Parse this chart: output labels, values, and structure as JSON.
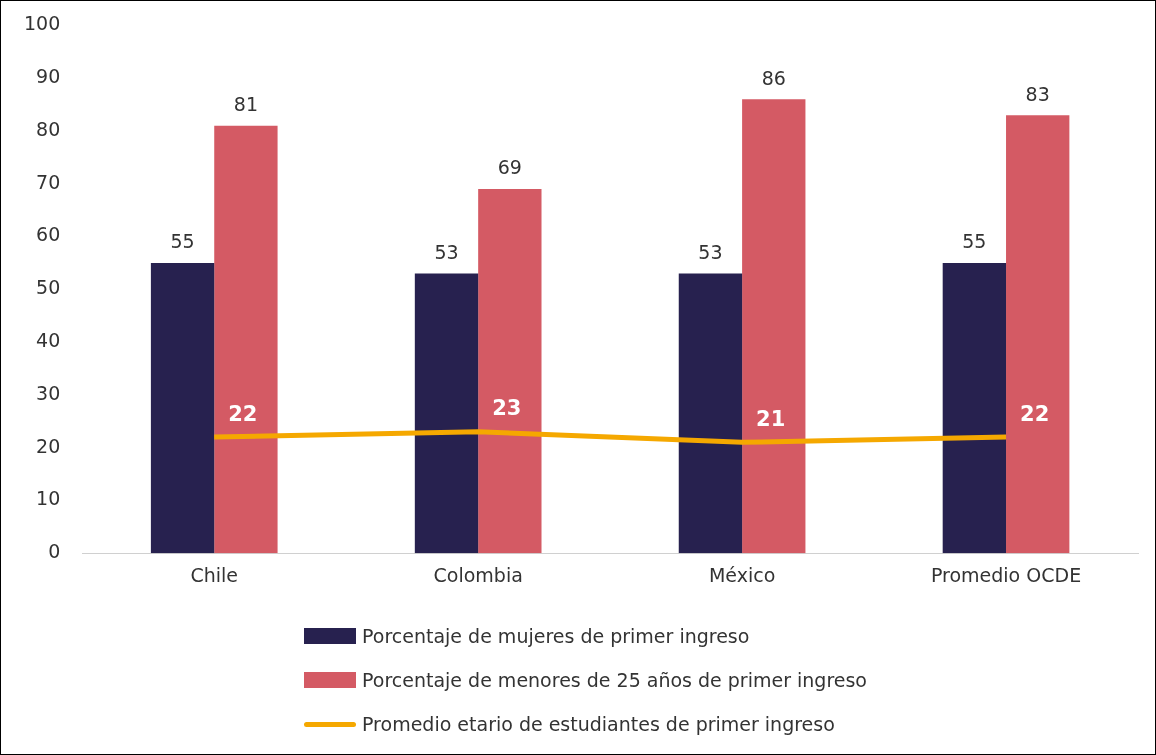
{
  "chart_data": {
    "type": "bar",
    "categories": [
      "Chile",
      "Colombia",
      "México",
      "Promedio OCDE"
    ],
    "series": [
      {
        "name": "Porcentaje de mujeres de primer ingreso",
        "color": "#27214f",
        "values": [
          55,
          53,
          53,
          55
        ]
      },
      {
        "name": "Porcentaje de menores de 25 años de primer ingreso",
        "color": "#d45a64",
        "values": [
          81,
          69,
          86,
          83
        ]
      },
      {
        "name": "Promedio etario de estudiantes de primer ingreso",
        "type": "line",
        "color": "#f5a800",
        "values": [
          22,
          23,
          21,
          22
        ]
      }
    ],
    "ylim": [
      0,
      100
    ],
    "yticks": [
      0,
      10,
      20,
      30,
      40,
      50,
      60,
      70,
      80,
      90,
      100
    ],
    "grid": false,
    "legend": "bottom",
    "data_labels": true,
    "marker": "none",
    "line_style": "solid"
  }
}
